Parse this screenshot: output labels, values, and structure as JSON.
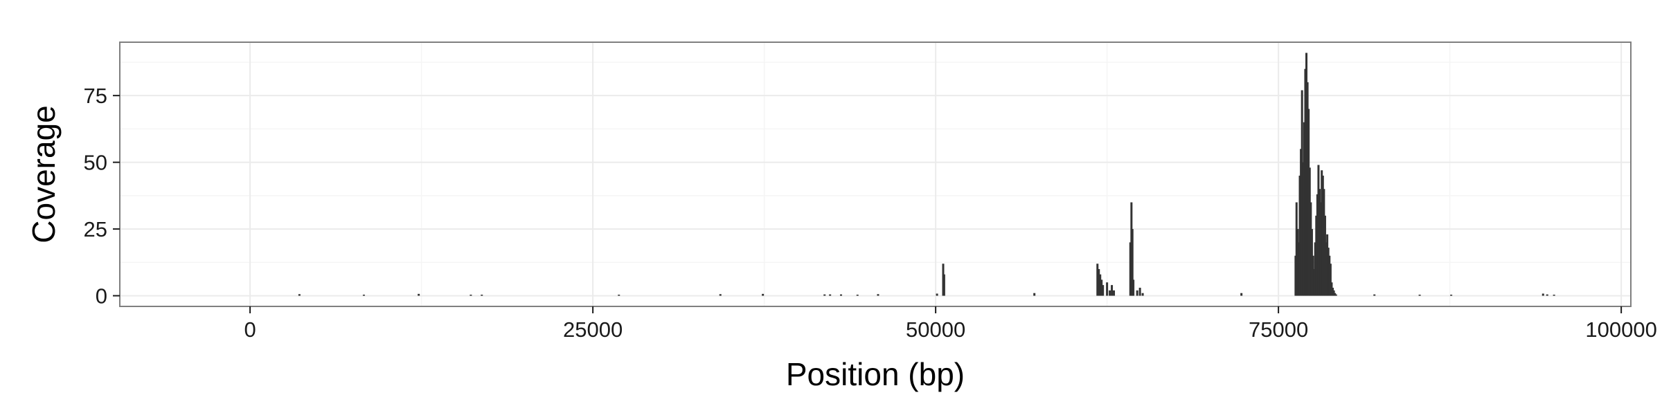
{
  "chart_data": {
    "type": "bar",
    "title": "",
    "xlabel": "Position (bp)",
    "ylabel": "Coverage",
    "xlim": [
      -9500,
      100700
    ],
    "ylim": [
      -4,
      95
    ],
    "x_ticks": [
      0,
      25000,
      50000,
      75000,
      100000
    ],
    "x_tick_labels": [
      "0",
      "25000",
      "50000",
      "75000",
      "100000"
    ],
    "y_ticks": [
      0,
      25,
      50,
      75
    ],
    "y_tick_labels": [
      "0",
      "25",
      "50",
      "75"
    ],
    "grid": true,
    "theme": "bw",
    "colors": {
      "bar": "#333333",
      "grid_major": "#ebebeb",
      "grid_minor": "#f5f5f5",
      "panel_border": "#7f7f7f",
      "axis_text": "#1a1a1a"
    },
    "series": [
      {
        "x": [
          3600,
          8300,
          12300,
          16100,
          16900,
          26900,
          34300,
          37400,
          41900,
          42300,
          43100,
          44300,
          45800,
          50100,
          50550,
          50620,
          57200,
          61800,
          61900,
          62000,
          62100,
          62200,
          62500,
          62700,
          62850,
          63000,
          64200,
          64280,
          64350,
          64420,
          64700,
          64900,
          65100,
          72300,
          76250,
          76320,
          76400,
          76480,
          76560,
          76640,
          76720,
          76800,
          76880,
          76960,
          77040,
          77120,
          77200,
          77280,
          77360,
          77440,
          77520,
          77600,
          77680,
          77760,
          77840,
          77920,
          78000,
          78080,
          78160,
          78240,
          78320,
          78400,
          78480,
          78560,
          78640,
          78720,
          78800,
          78880,
          78960,
          79040,
          79120,
          79200,
          82000,
          85300,
          87600,
          94300,
          94600,
          95100
        ],
        "values": [
          0.6,
          0.4,
          0.7,
          0.4,
          0.4,
          0.4,
          0.6,
          0.7,
          0.5,
          0.5,
          0.5,
          0.4,
          0.6,
          0.8,
          12,
          8,
          1,
          12,
          10,
          8,
          6,
          4,
          5,
          2,
          4,
          2,
          20,
          35,
          25,
          6,
          2,
          3,
          1,
          1,
          15,
          35,
          25,
          20,
          45,
          55,
          77,
          50,
          65,
          85,
          91,
          80,
          70,
          48,
          35,
          25,
          15,
          10,
          20,
          30,
          38,
          49,
          40,
          35,
          47,
          45,
          40,
          30,
          20,
          23,
          18,
          15,
          12,
          5,
          3,
          2,
          1,
          0.5,
          0.5,
          0.4,
          0.4,
          0.8,
          0.5,
          0.4
        ]
      }
    ]
  }
}
